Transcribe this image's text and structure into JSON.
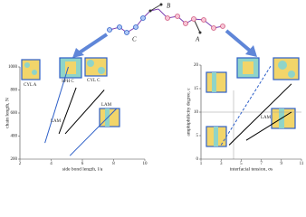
{
  "diagram": {
    "labels": [
      "B",
      "C",
      "A"
    ]
  },
  "chart_data": [
    {
      "type": "line",
      "x_label": "side bond length, l/a",
      "y_label": "chain length, N",
      "xlim": [
        2,
        10
      ],
      "xticks": [
        2,
        4,
        6,
        8,
        10
      ],
      "ylim": [
        200,
        1000
      ],
      "yticks": [
        200,
        400,
        600,
        800,
        1000
      ],
      "annotations": [
        "CYL A",
        "SPH C",
        "CYL C",
        "LAM",
        "LAM"
      ],
      "series": [
        {
          "color": "#2d5fc8",
          "x": [
            3.6,
            5.1
          ],
          "values": [
            340,
            1000
          ]
        },
        {
          "color": "#000000",
          "x": [
            4.5,
            5.6
          ],
          "values": [
            420,
            820
          ]
        },
        {
          "color": "#000000",
          "x": [
            4.9,
            7.4
          ],
          "values": [
            420,
            800
          ]
        },
        {
          "color": "#2d5fc8",
          "x": [
            5.2,
            8.2
          ],
          "values": [
            230,
            640
          ]
        }
      ]
    },
    {
      "type": "line",
      "x_label": "interfacial tension, σs",
      "y_label": "amphiphilicity degree, ε",
      "xlim": [
        1,
        11
      ],
      "xticks": [
        1,
        3,
        5,
        7,
        9,
        11
      ],
      "ylim": [
        0,
        20
      ],
      "yticks": [
        0,
        5,
        10,
        15,
        20
      ],
      "annotations": [
        "LAM"
      ],
      "series": [
        {
          "color": "#2d5fc8",
          "linestyle": "dashed",
          "x": [
            3,
            8
          ],
          "values": [
            3,
            20
          ]
        },
        {
          "color": "#000000",
          "x": [
            3.8,
            10
          ],
          "values": [
            3,
            16
          ]
        },
        {
          "color": "#000000",
          "x": [
            5.5,
            10
          ],
          "values": [
            4,
            10
          ]
        }
      ]
    }
  ]
}
